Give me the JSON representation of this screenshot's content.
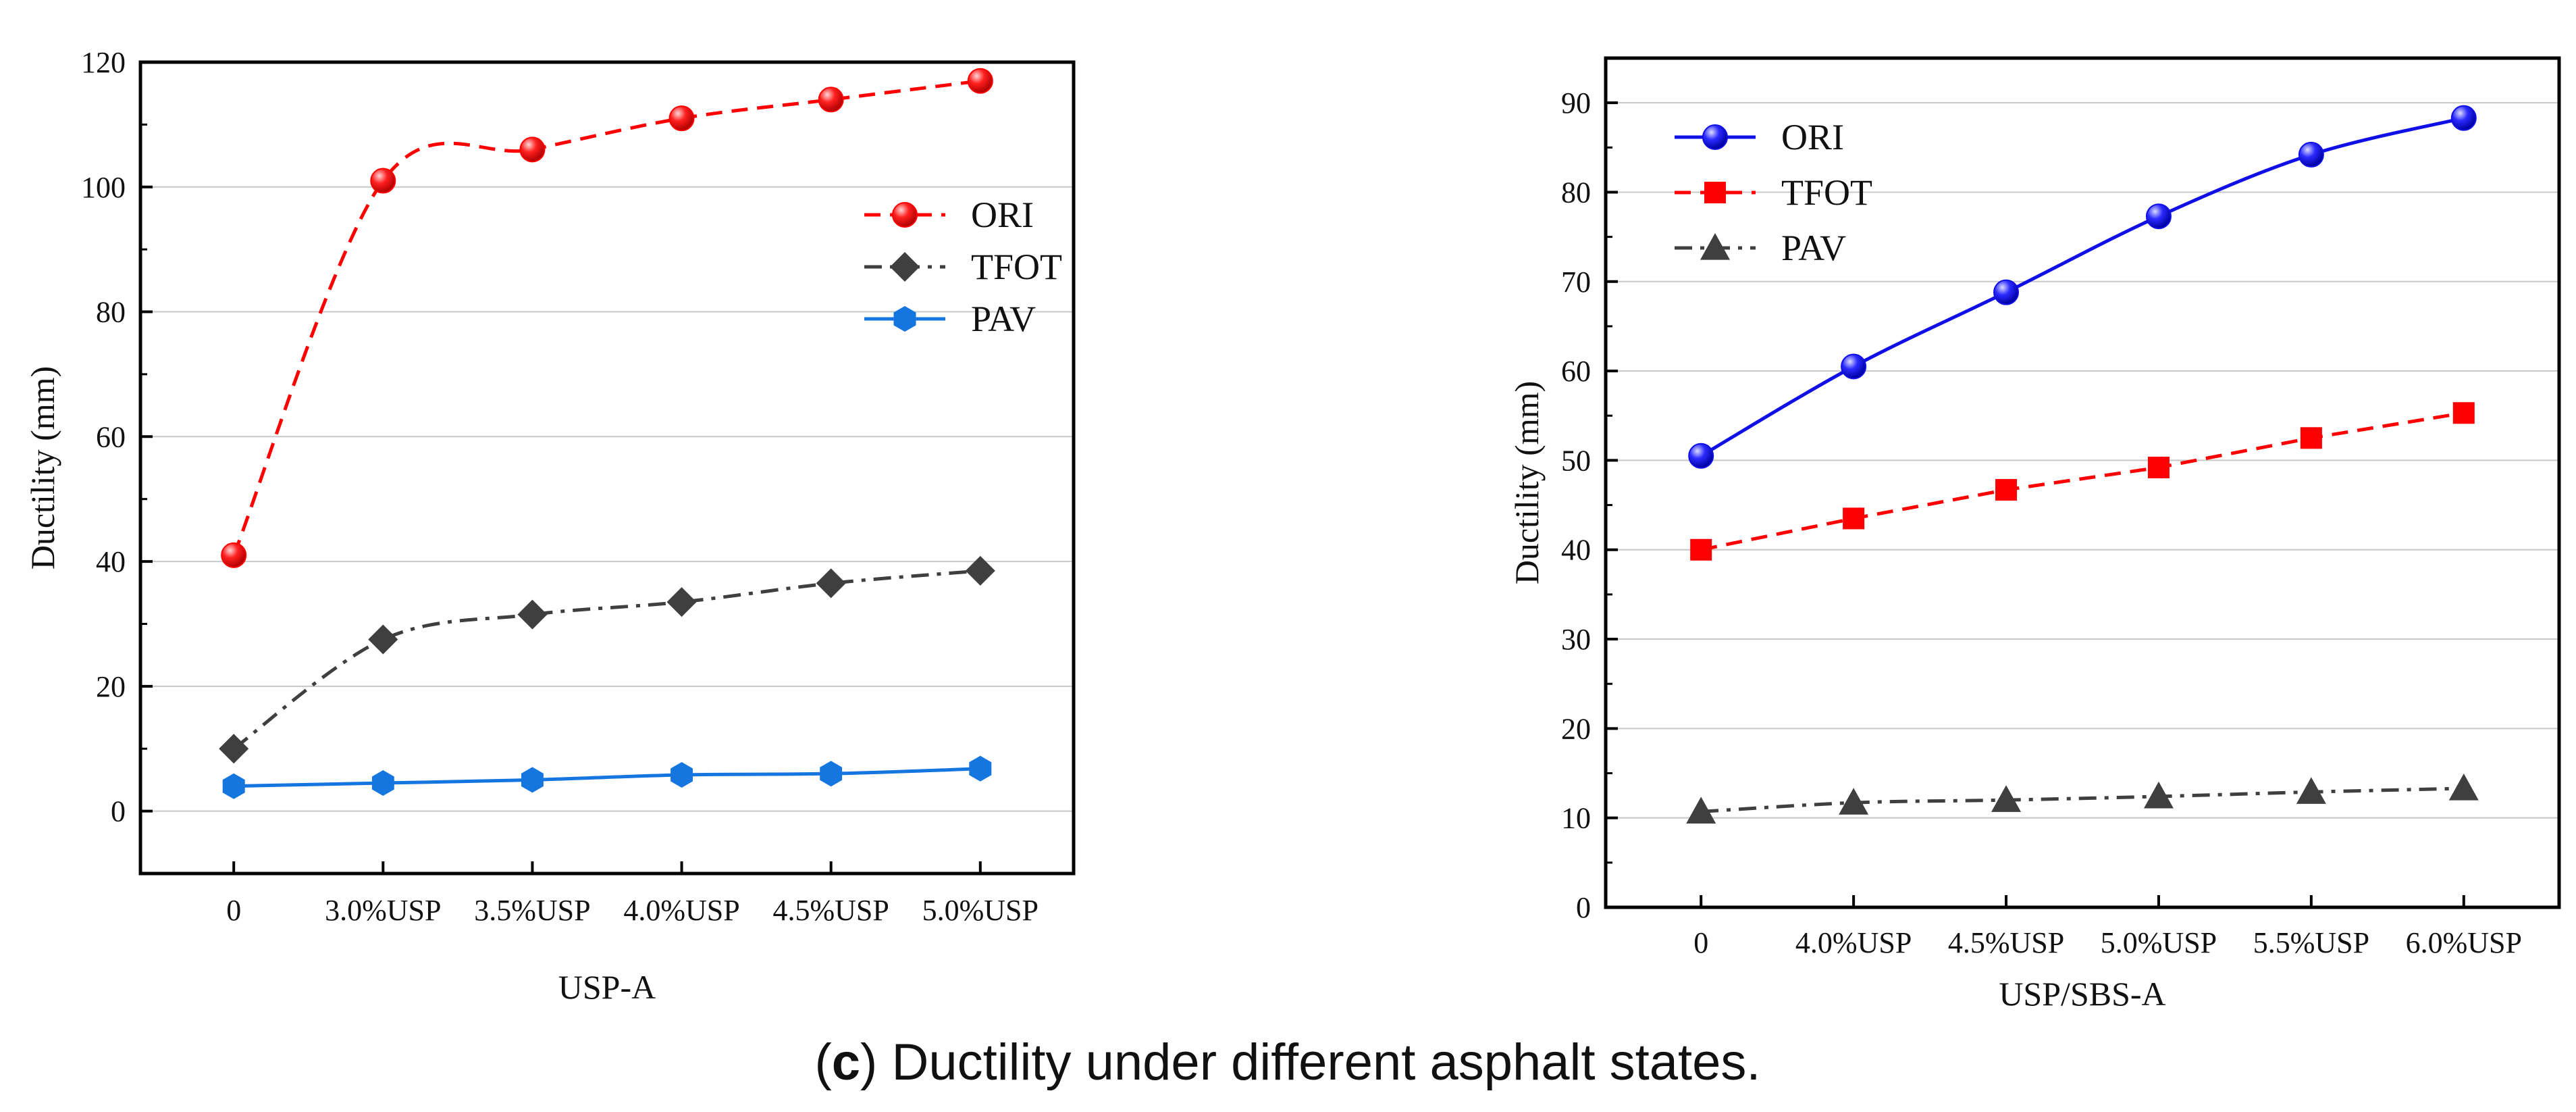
{
  "caption": {
    "open": "(",
    "letter": "c",
    "rest": ") Ductility under different asphalt states."
  },
  "chart_data": [
    {
      "type": "line",
      "xlabel": "USP-A",
      "ylabel": "Ductility (mm)",
      "categories": [
        "0",
        "3.0%USP",
        "3.5%USP",
        "4.0%USP",
        "4.5%USP",
        "5.0%USP"
      ],
      "ylim": [
        -10,
        120
      ],
      "yticks": [
        0,
        20,
        40,
        60,
        80,
        100,
        120
      ],
      "grid": "horizontal",
      "legend": "right",
      "series": [
        {
          "name": "ORI",
          "values": [
            41,
            101,
            106,
            111,
            114,
            117
          ],
          "color": "#ff0000",
          "marker": "sphere",
          "line": "dashed",
          "smooth": true
        },
        {
          "name": "TFOT",
          "values": [
            10,
            27.5,
            31.5,
            33.5,
            36.5,
            38.5
          ],
          "color": "#3f3f3f",
          "marker": "diamond",
          "line": "dashdot",
          "smooth": true
        },
        {
          "name": "PAV",
          "values": [
            4,
            4.5,
            5,
            5.8,
            6,
            6.8
          ],
          "color": "#1576e0",
          "marker": "hexagon",
          "line": "solid",
          "smooth": true
        }
      ]
    },
    {
      "type": "line",
      "xlabel": "USP/SBS-A",
      "ylabel": "Ductility (mm)",
      "categories": [
        "0",
        "4.0%USP",
        "4.5%USP",
        "5.0%USP",
        "5.5%USP",
        "6.0%USP"
      ],
      "ylim": [
        0,
        95
      ],
      "yticks": [
        0,
        10,
        20,
        30,
        40,
        50,
        60,
        70,
        80,
        90
      ],
      "grid": "horizontal",
      "legend": "top-left",
      "series": [
        {
          "name": "ORI",
          "values": [
            50.5,
            60.5,
            68.8,
            77.3,
            84.2,
            88.3
          ],
          "color": "#1010e6",
          "marker": "sphere",
          "line": "solid",
          "smooth": true
        },
        {
          "name": "TFOT",
          "values": [
            40,
            43.5,
            46.7,
            49.2,
            52.5,
            55.3
          ],
          "color": "#ff0000",
          "marker": "square",
          "line": "dashed",
          "smooth": false
        },
        {
          "name": "PAV",
          "values": [
            10.7,
            11.7,
            12,
            12.4,
            12.9,
            13.3
          ],
          "color": "#3f3f3f",
          "marker": "triangle",
          "line": "dashdot",
          "smooth": true
        }
      ]
    }
  ]
}
